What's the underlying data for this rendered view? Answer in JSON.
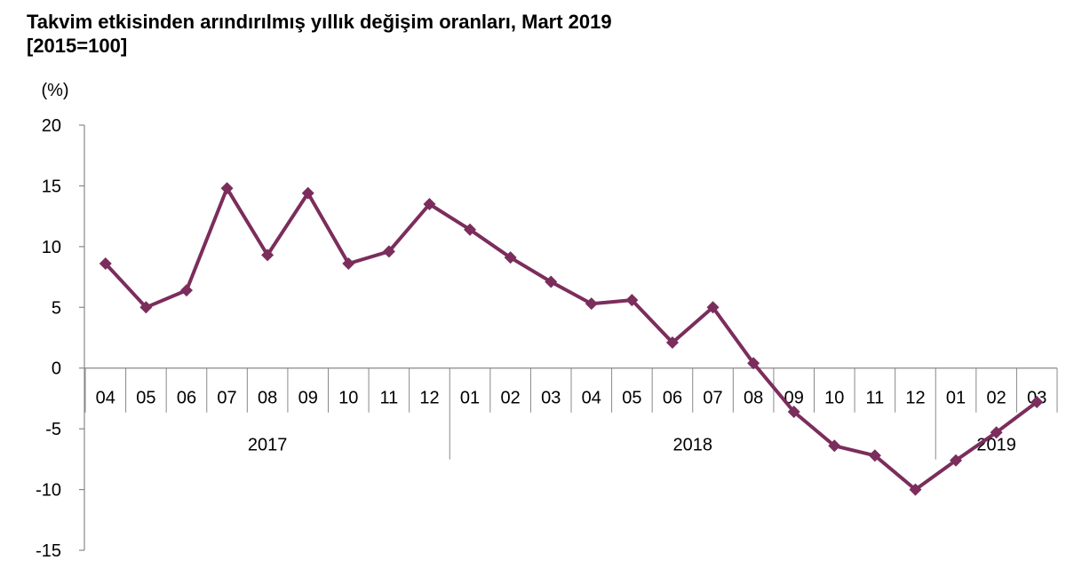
{
  "title": "Takvim etkisinden arındırılmış yıllık değişim oranları, Mart 2019",
  "subtitle": "[2015=100]",
  "chart_data": {
    "type": "line",
    "ylabel": "(%)",
    "ylim": [
      -15,
      20
    ],
    "yticks": [
      20,
      15,
      10,
      5,
      0,
      -5,
      -10,
      -15
    ],
    "categories": [
      "04",
      "05",
      "06",
      "07",
      "08",
      "09",
      "10",
      "11",
      "12",
      "01",
      "02",
      "03",
      "04",
      "05",
      "06",
      "07",
      "08",
      "09",
      "10",
      "11",
      "12",
      "01",
      "02",
      "03"
    ],
    "years": [
      {
        "label": "2017",
        "start": 0,
        "count": 9
      },
      {
        "label": "2018",
        "start": 9,
        "count": 12
      },
      {
        "label": "2019",
        "start": 21,
        "count": 3
      }
    ],
    "series": [
      {
        "values": [
          8.6,
          5.0,
          6.4,
          14.8,
          9.3,
          14.4,
          8.6,
          9.6,
          13.5,
          11.4,
          9.1,
          7.1,
          5.3,
          5.6,
          2.1,
          5.0,
          0.4,
          -3.6,
          -6.4,
          -7.2,
          -10.0,
          -7.6,
          -5.3,
          -2.8
        ],
        "color": "#7b2d5c"
      }
    ],
    "grid": false
  }
}
